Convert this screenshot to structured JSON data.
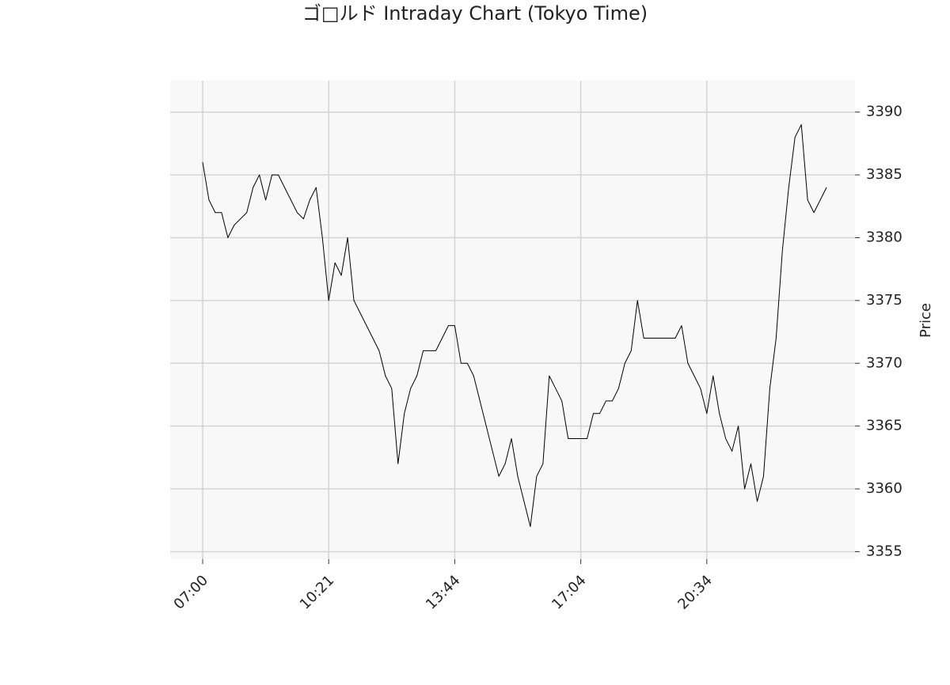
{
  "chart_data": {
    "type": "line",
    "title": "ゴ□ルド Intraday Chart (Tokyo Time)",
    "y_label": "Price",
    "categories": [
      "07:00",
      null,
      null,
      null,
      null,
      null,
      null,
      null,
      null,
      null,
      null,
      null,
      null,
      null,
      null,
      null,
      null,
      null,
      null,
      null,
      "10:21",
      null,
      null,
      null,
      null,
      null,
      null,
      null,
      null,
      null,
      null,
      null,
      null,
      null,
      null,
      null,
      null,
      null,
      null,
      null,
      "13:44",
      null,
      null,
      null,
      null,
      null,
      null,
      null,
      null,
      null,
      null,
      null,
      null,
      null,
      null,
      null,
      null,
      null,
      null,
      null,
      "17:04",
      null,
      null,
      null,
      null,
      null,
      null,
      null,
      null,
      null,
      null,
      null,
      null,
      null,
      null,
      null,
      null,
      null,
      null,
      null,
      "20:34",
      null,
      null,
      null,
      null,
      null,
      null,
      null,
      null,
      null,
      null,
      null,
      null,
      null,
      null,
      null,
      null,
      null,
      null,
      null
    ],
    "values": [
      3386,
      3383,
      3382,
      3382,
      3380,
      3381,
      3381.5,
      3382,
      3384,
      3385,
      3383,
      3385,
      3385,
      3384,
      3383,
      3382,
      3381.5,
      3383,
      3384,
      3380,
      3375,
      3378,
      3377,
      3380,
      3375,
      3374,
      3373,
      3372,
      3371,
      3369,
      3368,
      3362,
      3366,
      3368,
      3369,
      3371,
      3371,
      3371,
      3372,
      3373,
      3373,
      3370,
      3370,
      3369,
      3367,
      3365,
      3363,
      3361,
      3362,
      3364,
      3361,
      3359,
      3357,
      3361,
      3362,
      3369,
      3368,
      3367,
      3364,
      3364,
      3364,
      3364,
      3366,
      3366,
      3367,
      3367,
      3368,
      3370,
      3371,
      3375,
      3372,
      3372,
      3372,
      3372,
      3372,
      3372,
      3373,
      3370,
      3369,
      3368,
      3366,
      3369,
      3366,
      3364,
      3363,
      3365,
      3360,
      3362,
      3359,
      3361,
      3368,
      3372,
      3379,
      3384,
      3388,
      3389,
      3383,
      3382,
      3383,
      3384
    ],
    "color": "#000000",
    "ylim": [
      3354.4,
      3392.5
    ],
    "yticks": [
      3355,
      3360,
      3365,
      3370,
      3375,
      3380,
      3385,
      3390
    ],
    "grid": true
  }
}
